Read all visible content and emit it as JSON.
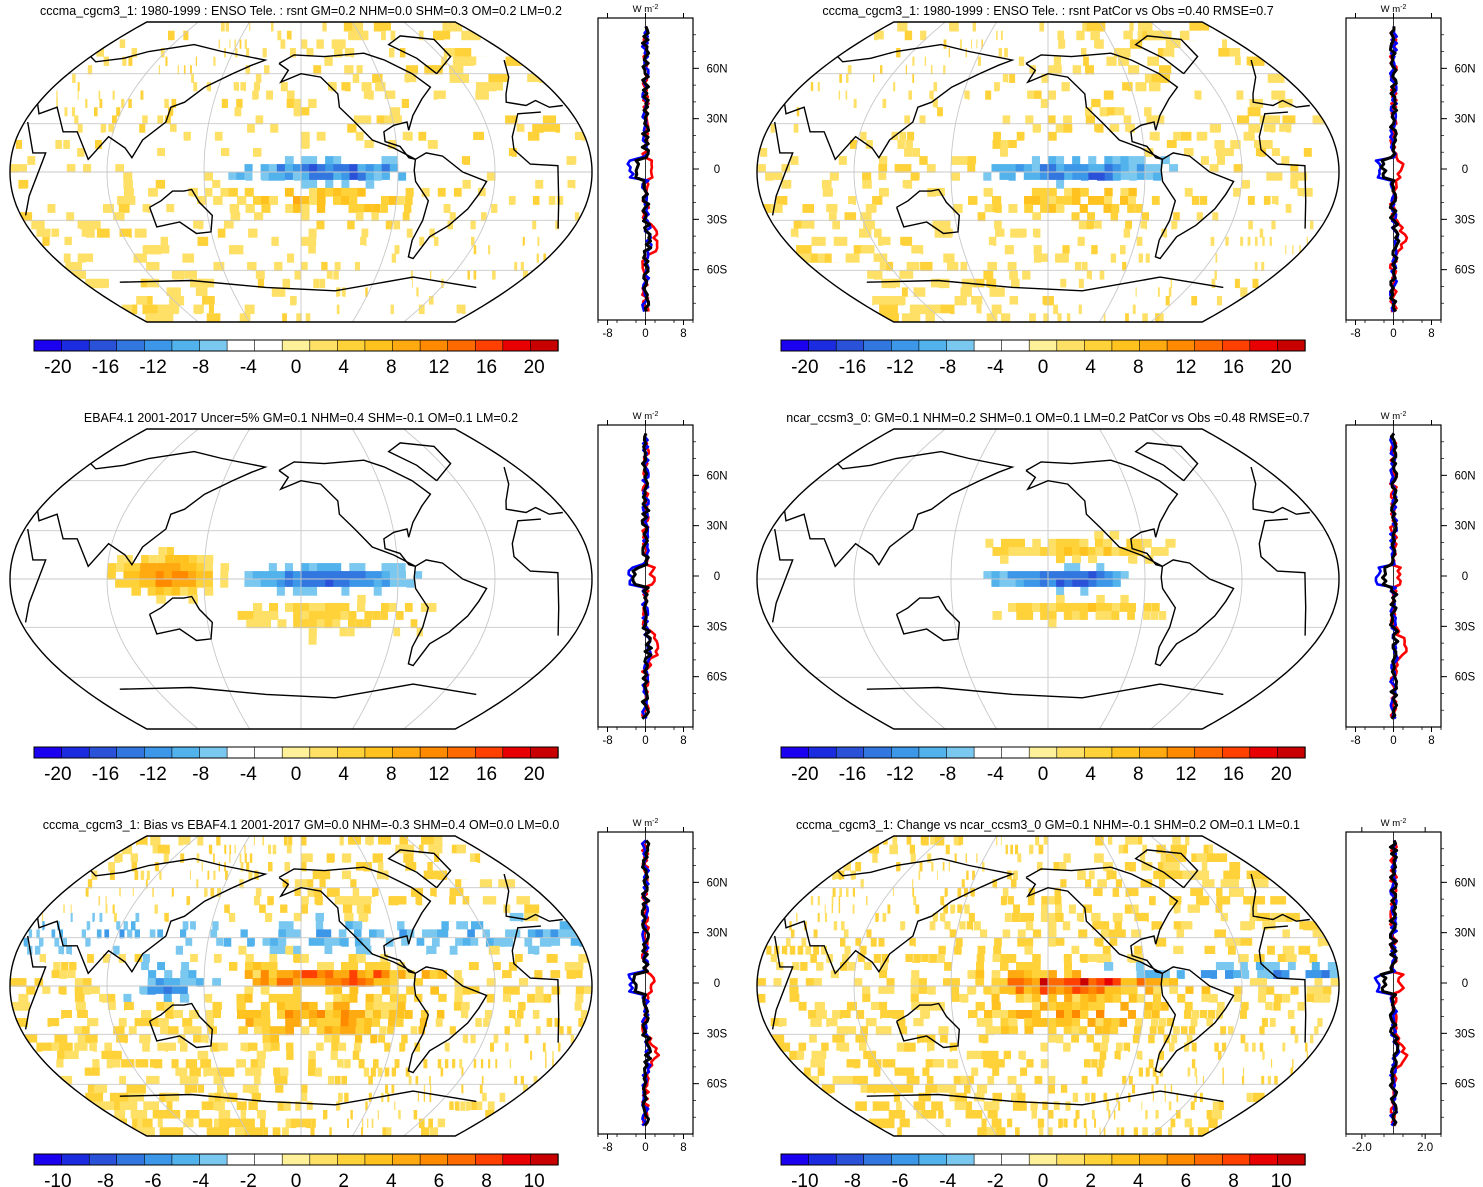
{
  "figure": {
    "panels": [
      {
        "id": "p1",
        "title": "cccma_cgcm3_1: 1980-1999 : ENSO Tele. : rsnt GM=0.2 NHM=0.0 SHM=0.3 OM=0.2 LM=0.2",
        "map_field": "model_enso",
        "profile_unit": "W m",
        "profile_unit_sup": "-2",
        "profile_xticks": [
          "-8",
          "0",
          "8"
        ],
        "profile_xlim": [
          -10,
          10
        ],
        "lat_ticks": [
          "60N",
          "30N",
          "0",
          "30S",
          "60S"
        ],
        "colorbar": {
          "levels": [
            -20,
            -16,
            -12,
            -8,
            -4,
            0,
            4,
            8,
            12,
            16,
            20
          ],
          "labels": [
            "-20",
            "-16",
            "-12",
            "-8",
            "-4",
            "0",
            "4",
            "8",
            "12",
            "16",
            "20"
          ]
        },
        "profile_series": [
          "red",
          "blue",
          "black"
        ]
      },
      {
        "id": "p2",
        "title": "cccma_cgcm3_1: 1980-1999 : ENSO Tele. : rsnt PatCor vs Obs =0.40 RMSE=0.7",
        "map_field": "model_enso",
        "profile_unit": "W m",
        "profile_unit_sup": "-2",
        "profile_xticks": [
          "-8",
          "0",
          "8"
        ],
        "profile_xlim": [
          -10,
          10
        ],
        "lat_ticks": [
          "60N",
          "30N",
          "0",
          "30S",
          "60S"
        ],
        "colorbar": {
          "levels": [
            -20,
            -16,
            -12,
            -8,
            -4,
            0,
            4,
            8,
            12,
            16,
            20
          ],
          "labels": [
            "-20",
            "-16",
            "-12",
            "-8",
            "-4",
            "0",
            "4",
            "8",
            "12",
            "16",
            "20"
          ]
        },
        "profile_series": [
          "red",
          "blue",
          "black"
        ]
      },
      {
        "id": "p3",
        "title": "EBAF4.1 2001-2017 Uncer=5% GM=0.1 NHM=0.4 SHM=-0.1 OM=0.1 LM=0.2",
        "map_field": "obs_enso",
        "profile_unit": "W m",
        "profile_unit_sup": "-2",
        "profile_xticks": [
          "-8",
          "0",
          "8"
        ],
        "profile_xlim": [
          -10,
          10
        ],
        "lat_ticks": [
          "60N",
          "30N",
          "0",
          "30S",
          "60S"
        ],
        "colorbar": {
          "levels": [
            -20,
            -16,
            -12,
            -8,
            -4,
            0,
            4,
            8,
            12,
            16,
            20
          ],
          "labels": [
            "-20",
            "-16",
            "-12",
            "-8",
            "-4",
            "0",
            "4",
            "8",
            "12",
            "16",
            "20"
          ]
        },
        "profile_series": [
          "red",
          "blue",
          "black"
        ]
      },
      {
        "id": "p4",
        "title": "ncar_ccsm3_0: GM=0.1 NHM=0.2 SHM=0.1 OM=0.1 LM=0.2 PatCor vs Obs =0.48 RMSE=0.7",
        "map_field": "ref_enso",
        "profile_unit": "W m",
        "profile_unit_sup": "-2",
        "profile_xticks": [
          "-8",
          "0",
          "8"
        ],
        "profile_xlim": [
          -10,
          10
        ],
        "lat_ticks": [
          "60N",
          "30N",
          "0",
          "30S",
          "60S"
        ],
        "colorbar": {
          "levels": [
            -20,
            -16,
            -12,
            -8,
            -4,
            0,
            4,
            8,
            12,
            16,
            20
          ],
          "labels": [
            "-20",
            "-16",
            "-12",
            "-8",
            "-4",
            "0",
            "4",
            "8",
            "12",
            "16",
            "20"
          ]
        },
        "profile_series": [
          "red",
          "blue",
          "black"
        ]
      },
      {
        "id": "p5",
        "title": "cccma_cgcm3_1: Bias vs EBAF4.1 2001-2017 GM=0.0 NHM=-0.3 SHM=0.4 OM=0.0 LM=0.0",
        "map_field": "bias",
        "profile_unit": "W m",
        "profile_unit_sup": "-2",
        "profile_xticks": [
          "-8",
          "0",
          "8"
        ],
        "profile_xlim": [
          -10,
          10
        ],
        "lat_ticks": [
          "60N",
          "30N",
          "0",
          "30S",
          "60S"
        ],
        "colorbar": {
          "levels": [
            -10,
            -8,
            -6,
            -4,
            -2,
            0,
            2,
            4,
            6,
            8,
            10
          ],
          "labels": [
            "-10",
            "-8",
            "-6",
            "-4",
            "-2",
            "0",
            "2",
            "4",
            "6",
            "8",
            "10"
          ]
        },
        "profile_series": [
          "red",
          "blue",
          "black"
        ]
      },
      {
        "id": "p6",
        "title": "cccma_cgcm3_1: Change vs ncar_ccsm3_0 GM=0.1 NHM=-0.1 SHM=0.2 OM=0.1 LM=0.1",
        "map_field": "change",
        "profile_unit": "W m",
        "profile_unit_sup": "-2",
        "profile_xticks": [
          "-2.0",
          "2.0"
        ],
        "profile_xlim": [
          -3,
          3
        ],
        "lat_ticks": [
          "60N",
          "30N",
          "0",
          "30S",
          "60S"
        ],
        "colorbar": {
          "levels": [
            -10,
            -8,
            -6,
            -4,
            -2,
            0,
            2,
            4,
            6,
            8,
            10
          ],
          "labels": [
            "-10",
            "-8",
            "-6",
            "-4",
            "-2",
            "0",
            "2",
            "4",
            "6",
            "8",
            "10"
          ]
        },
        "profile_series": [
          "red",
          "blue",
          "black"
        ]
      }
    ],
    "colors": {
      "colorbar_fills": [
        "#1c00f0",
        "#1b2ce0",
        "#2a52d8",
        "#3277e0",
        "#3d97e8",
        "#52b2ec",
        "#7ac8f0",
        "#ffffff",
        "#ffffff",
        "#fff19a",
        "#ffe066",
        "#ffd23a",
        "#ffc21e",
        "#ffaa10",
        "#ff8a00",
        "#ff6a00",
        "#ff4000",
        "#e80000",
        "#c80000"
      ],
      "coast": "#000000",
      "grid": "#c8c8c8",
      "profile_red": "#ff0000",
      "profile_blue": "#0000ff",
      "profile_black": "#000000"
    }
  }
}
